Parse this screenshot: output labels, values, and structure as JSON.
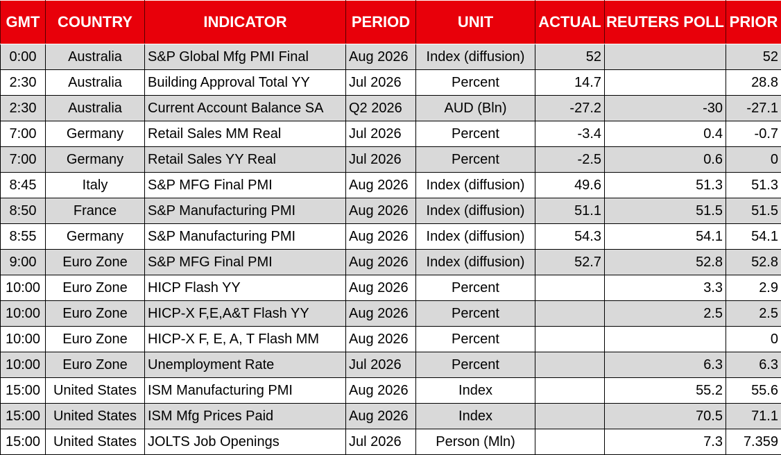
{
  "header": {
    "gmt": "GMT",
    "country": "COUNTRY",
    "indicator": "INDICATOR",
    "period": "PERIOD",
    "unit": "UNIT",
    "actual": "ACTUAL",
    "poll": "REUTERS POLL",
    "prior": "PRIOR"
  },
  "colors": {
    "header_bg": "#e8000a",
    "header_text": "#ffffff",
    "row_shade": "#d9d9d9"
  },
  "rows": [
    {
      "gmt": "0:00",
      "country": "Australia",
      "indicator": "S&P Global Mfg PMI Final",
      "period": "Aug 2026",
      "unit": "Index (diffusion)",
      "actual": "52",
      "poll": "",
      "prior": "52"
    },
    {
      "gmt": "2:30",
      "country": "Australia",
      "indicator": "Building Approval Total YY",
      "period": "Jul 2026",
      "unit": "Percent",
      "actual": "14.7",
      "poll": "",
      "prior": "28.8"
    },
    {
      "gmt": "2:30",
      "country": "Australia",
      "indicator": "Current Account Balance SA",
      "period": "Q2 2026",
      "unit": "AUD (Bln)",
      "actual": "-27.2",
      "poll": "-30",
      "prior": "-27.1"
    },
    {
      "gmt": "7:00",
      "country": "Germany",
      "indicator": "Retail Sales MM Real",
      "period": "Jul 2026",
      "unit": "Percent",
      "actual": "-3.4",
      "poll": "0.4",
      "prior": "-0.7"
    },
    {
      "gmt": "7:00",
      "country": "Germany",
      "indicator": "Retail Sales YY Real",
      "period": "Jul 2026",
      "unit": "Percent",
      "actual": "-2.5",
      "poll": "0.6",
      "prior": "0"
    },
    {
      "gmt": "8:45",
      "country": "Italy",
      "indicator": "S&P MFG Final PMI",
      "period": "Aug 2026",
      "unit": "Index (diffusion)",
      "actual": "49.6",
      "poll": "51.3",
      "prior": "51.3"
    },
    {
      "gmt": "8:50",
      "country": "France",
      "indicator": "S&P Manufacturing PMI",
      "period": "Aug 2026",
      "unit": "Index (diffusion)",
      "actual": "51.1",
      "poll": "51.5",
      "prior": "51.5"
    },
    {
      "gmt": "8:55",
      "country": "Germany",
      "indicator": "S&P Manufacturing PMI",
      "period": "Aug 2026",
      "unit": "Index (diffusion)",
      "actual": "54.3",
      "poll": "54.1",
      "prior": "54.1"
    },
    {
      "gmt": "9:00",
      "country": "Euro Zone",
      "indicator": "S&P MFG Final PMI",
      "period": "Aug 2026",
      "unit": "Index (diffusion)",
      "actual": "52.7",
      "poll": "52.8",
      "prior": "52.8"
    },
    {
      "gmt": "10:00",
      "country": "Euro Zone",
      "indicator": "HICP Flash YY",
      "period": "Aug 2026",
      "unit": "Percent",
      "actual": "",
      "poll": "3.3",
      "prior": "2.9"
    },
    {
      "gmt": "10:00",
      "country": "Euro Zone",
      "indicator": "HICP-X F,E,A&T Flash YY",
      "period": "Aug 2026",
      "unit": "Percent",
      "actual": "",
      "poll": "2.5",
      "prior": "2.5"
    },
    {
      "gmt": "10:00",
      "country": "Euro Zone",
      "indicator": "HICP-X F, E, A, T Flash MM",
      "period": "Aug 2026",
      "unit": "Percent",
      "actual": "",
      "poll": "",
      "prior": "0"
    },
    {
      "gmt": "10:00",
      "country": "Euro Zone",
      "indicator": "Unemployment Rate",
      "period": "Jul 2026",
      "unit": "Percent",
      "actual": "",
      "poll": "6.3",
      "prior": "6.3"
    },
    {
      "gmt": "15:00",
      "country": "United States",
      "indicator": "ISM Manufacturing PMI",
      "period": "Aug 2026",
      "unit": "Index",
      "actual": "",
      "poll": "55.2",
      "prior": "55.6"
    },
    {
      "gmt": "15:00",
      "country": "United States",
      "indicator": "ISM Mfg Prices Paid",
      "period": "Aug 2026",
      "unit": "Index",
      "actual": "",
      "poll": "70.5",
      "prior": "71.1"
    },
    {
      "gmt": "15:00",
      "country": "United States",
      "indicator": "JOLTS Job Openings",
      "period": "Jul 2026",
      "unit": "Person (Mln)",
      "actual": "",
      "poll": "7.3",
      "prior": "7.359"
    }
  ]
}
